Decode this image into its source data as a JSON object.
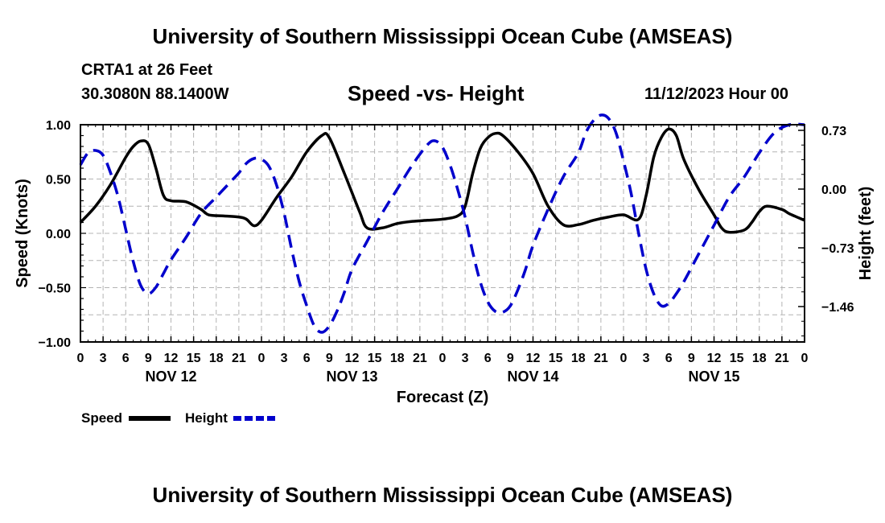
{
  "header": {
    "title": "University of Southern Mississippi Ocean Cube (AMSEAS)",
    "station": "CRTA1 at 26 Feet",
    "coords": "30.3080N  88.1400W",
    "chart_title": "Speed -vs- Height",
    "datetime": "11/12/2023 Hour 00"
  },
  "footer": {
    "title": "University of Southern Mississippi Ocean Cube (AMSEAS)"
  },
  "chart_data": {
    "type": "line",
    "title": "Speed -vs- Height",
    "xlabel": "Forecast (Z)",
    "ylabel": "Speed (Knots)",
    "y2label": "Height (feet)",
    "xlim": [
      0,
      96
    ],
    "ylim": [
      -1.0,
      1.0
    ],
    "y2lim": [
      -1.9,
      0.8
    ],
    "grid": true,
    "x_ticks": [
      0,
      3,
      6,
      9,
      12,
      15,
      18,
      21,
      24,
      27,
      30,
      33,
      36,
      39,
      42,
      45,
      48,
      51,
      54,
      57,
      60,
      63,
      66,
      69,
      72,
      75,
      78,
      81,
      84,
      87,
      90,
      93,
      96
    ],
    "x_tick_labels": [
      "0",
      "3",
      "6",
      "9",
      "12",
      "15",
      "18",
      "21",
      "0",
      "3",
      "6",
      "9",
      "12",
      "15",
      "18",
      "21",
      "0",
      "3",
      "6",
      "9",
      "12",
      "15",
      "18",
      "21",
      "0",
      "3",
      "6",
      "9",
      "12",
      "15",
      "18",
      "21",
      "0"
    ],
    "date_labels": [
      {
        "label": "NOV 12",
        "x": 12
      },
      {
        "label": "NOV 13",
        "x": 36
      },
      {
        "label": "NOV 14",
        "x": 60
      },
      {
        "label": "NOV 15",
        "x": 84
      }
    ],
    "y_ticks": [
      -1.0,
      -0.5,
      0.0,
      0.5,
      1.0
    ],
    "y_tick_labels": [
      "−1.00",
      "−0.50",
      "0.00",
      "0.50",
      "1.00"
    ],
    "y2_ticks": [
      -1.46,
      -0.73,
      0.0,
      0.73
    ],
    "y2_tick_labels": [
      "−1.46",
      "−0.73",
      "0.00",
      "0.73"
    ],
    "legend": [
      {
        "name": "Speed",
        "color": "#000000",
        "dash": "solid"
      },
      {
        "name": "Height",
        "color": "#0000cc",
        "dash": "dashed"
      }
    ],
    "series": [
      {
        "name": "Speed",
        "axis": "left",
        "color": "#000000",
        "points": [
          [
            0,
            0.1
          ],
          [
            2,
            0.25
          ],
          [
            4,
            0.45
          ],
          [
            6,
            0.7
          ],
          [
            7,
            0.8
          ],
          [
            8,
            0.85
          ],
          [
            9,
            0.82
          ],
          [
            10,
            0.6
          ],
          [
            11,
            0.35
          ],
          [
            12,
            0.3
          ],
          [
            14,
            0.29
          ],
          [
            16,
            0.22
          ],
          [
            17,
            0.17
          ],
          [
            19,
            0.16
          ],
          [
            21,
            0.15
          ],
          [
            22,
            0.13
          ],
          [
            23,
            0.07
          ],
          [
            24,
            0.12
          ],
          [
            26,
            0.33
          ],
          [
            28,
            0.52
          ],
          [
            30,
            0.75
          ],
          [
            32,
            0.9
          ],
          [
            33,
            0.88
          ],
          [
            35,
            0.55
          ],
          [
            37,
            0.2
          ],
          [
            38,
            0.05
          ],
          [
            40,
            0.05
          ],
          [
            42,
            0.09
          ],
          [
            44,
            0.11
          ],
          [
            46,
            0.12
          ],
          [
            48,
            0.13
          ],
          [
            50,
            0.16
          ],
          [
            51,
            0.25
          ],
          [
            52,
            0.55
          ],
          [
            53,
            0.78
          ],
          [
            54,
            0.88
          ],
          [
            55,
            0.92
          ],
          [
            56,
            0.9
          ],
          [
            58,
            0.75
          ],
          [
            60,
            0.55
          ],
          [
            62,
            0.25
          ],
          [
            64,
            0.08
          ],
          [
            66,
            0.08
          ],
          [
            68,
            0.12
          ],
          [
            70,
            0.15
          ],
          [
            72,
            0.17
          ],
          [
            74,
            0.13
          ],
          [
            75,
            0.35
          ],
          [
            76,
            0.7
          ],
          [
            77,
            0.88
          ],
          [
            78,
            0.96
          ],
          [
            79,
            0.9
          ],
          [
            80,
            0.68
          ],
          [
            82,
            0.4
          ],
          [
            84,
            0.17
          ],
          [
            85,
            0.05
          ],
          [
            86,
            0.01
          ],
          [
            88,
            0.03
          ],
          [
            89,
            0.1
          ],
          [
            90,
            0.2
          ],
          [
            91,
            0.25
          ],
          [
            93,
            0.22
          ],
          [
            94,
            0.18
          ],
          [
            96,
            0.12
          ]
        ]
      },
      {
        "name": "Height",
        "axis": "right",
        "color": "#0000cc",
        "points": [
          [
            0,
            0.3
          ],
          [
            1,
            0.45
          ],
          [
            2,
            0.48
          ],
          [
            3,
            0.42
          ],
          [
            4,
            0.2
          ],
          [
            5,
            -0.1
          ],
          [
            6,
            -0.5
          ],
          [
            7,
            -0.9
          ],
          [
            8,
            -1.2
          ],
          [
            9,
            -1.3
          ],
          [
            10,
            -1.22
          ],
          [
            11,
            -1.05
          ],
          [
            12,
            -0.88
          ],
          [
            14,
            -0.6
          ],
          [
            16,
            -0.3
          ],
          [
            18,
            -0.1
          ],
          [
            20,
            0.1
          ],
          [
            21,
            0.2
          ],
          [
            22,
            0.32
          ],
          [
            23,
            0.38
          ],
          [
            24,
            0.37
          ],
          [
            25,
            0.28
          ],
          [
            26,
            0.05
          ],
          [
            27,
            -0.3
          ],
          [
            28,
            -0.75
          ],
          [
            29,
            -1.15
          ],
          [
            30,
            -1.45
          ],
          [
            31,
            -1.7
          ],
          [
            32,
            -1.78
          ],
          [
            33,
            -1.7
          ],
          [
            34,
            -1.52
          ],
          [
            35,
            -1.28
          ],
          [
            36,
            -1.0
          ],
          [
            38,
            -0.65
          ],
          [
            40,
            -0.3
          ],
          [
            42,
            0.0
          ],
          [
            44,
            0.3
          ],
          [
            46,
            0.55
          ],
          [
            47,
            0.6
          ],
          [
            48,
            0.52
          ],
          [
            49,
            0.3
          ],
          [
            50,
            0.0
          ],
          [
            51,
            -0.35
          ],
          [
            52,
            -0.78
          ],
          [
            53,
            -1.15
          ],
          [
            54,
            -1.4
          ],
          [
            55,
            -1.52
          ],
          [
            56,
            -1.53
          ],
          [
            57,
            -1.45
          ],
          [
            58,
            -1.25
          ],
          [
            59,
            -1.0
          ],
          [
            60,
            -0.7
          ],
          [
            62,
            -0.25
          ],
          [
            64,
            0.15
          ],
          [
            66,
            0.45
          ],
          [
            67,
            0.7
          ],
          [
            68,
            0.85
          ],
          [
            69,
            0.92
          ],
          [
            70,
            0.88
          ],
          [
            71,
            0.7
          ],
          [
            72,
            0.35
          ],
          [
            73,
            -0.05
          ],
          [
            74,
            -0.55
          ],
          [
            75,
            -1.0
          ],
          [
            76,
            -1.3
          ],
          [
            77,
            -1.45
          ],
          [
            78,
            -1.42
          ],
          [
            79,
            -1.3
          ],
          [
            80,
            -1.15
          ],
          [
            82,
            -0.8
          ],
          [
            84,
            -0.45
          ],
          [
            86,
            -0.1
          ],
          [
            88,
            0.15
          ],
          [
            90,
            0.45
          ],
          [
            92,
            0.7
          ],
          [
            94,
            0.8
          ],
          [
            96,
            0.8
          ]
        ]
      }
    ]
  }
}
